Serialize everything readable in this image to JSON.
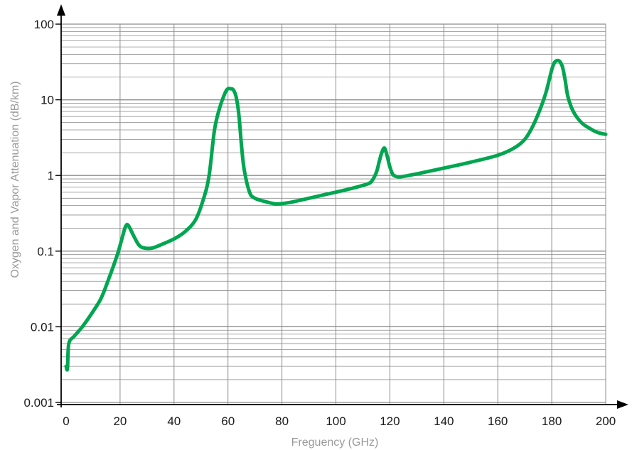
{
  "chart_data": {
    "type": "line",
    "title": "",
    "xlabel": "Freguency (GHz)",
    "ylabel": "Oxygen and Vapor Attenuation (dB/km)",
    "xlim": [
      0,
      200
    ],
    "ylim": [
      0.001,
      100
    ],
    "yscale": "log",
    "grid": true,
    "legend": "none",
    "xticks": [
      0,
      20,
      40,
      60,
      80,
      100,
      120,
      140,
      160,
      180,
      200
    ],
    "xtick_labels": [
      "0",
      "20",
      "40",
      "60",
      "80",
      "100",
      "120",
      "140",
      "160",
      "180",
      "200"
    ],
    "yticks": [
      0.001,
      0.01,
      0.1,
      1,
      10,
      100
    ],
    "ytick_labels": [
      "0.001",
      "0.01",
      "0.1",
      "1",
      "10",
      "100"
    ],
    "line_color": "#00a650",
    "grid_color": "#8c8c8c",
    "series": [
      {
        "x": [
          0,
          0.5,
          1,
          3,
          6,
          10,
          13,
          16,
          19,
          21,
          22,
          23,
          25,
          27,
          29,
          32,
          36,
          40,
          44,
          48,
          51,
          53,
          55,
          57,
          59,
          60,
          61,
          62,
          63,
          64,
          65,
          66,
          68,
          70,
          74,
          78,
          83,
          90,
          97,
          104,
          110,
          113,
          115,
          116,
          117,
          118,
          119,
          120,
          121,
          122,
          124,
          130,
          140,
          150,
          160,
          166,
          170,
          173,
          176,
          178,
          180,
          181,
          182,
          183,
          184,
          185,
          186,
          188,
          191,
          194,
          197,
          200
        ],
        "y": [
          0.003,
          0.0028,
          0.006,
          0.0075,
          0.01,
          0.016,
          0.024,
          0.045,
          0.09,
          0.16,
          0.21,
          0.22,
          0.16,
          0.12,
          0.11,
          0.11,
          0.125,
          0.145,
          0.18,
          0.26,
          0.5,
          1.0,
          4.0,
          8.0,
          12.5,
          14.0,
          14.0,
          13.5,
          11.0,
          6.5,
          2.5,
          1.2,
          0.6,
          0.5,
          0.45,
          0.42,
          0.44,
          0.5,
          0.57,
          0.65,
          0.74,
          0.82,
          1.1,
          1.5,
          2.0,
          2.3,
          1.8,
          1.3,
          1.05,
          0.98,
          0.96,
          1.05,
          1.25,
          1.5,
          1.85,
          2.3,
          3.0,
          4.5,
          8.0,
          13.0,
          25.0,
          31.0,
          33.0,
          32.0,
          27.0,
          18.0,
          11.0,
          7.0,
          5.0,
          4.2,
          3.7,
          3.5
        ]
      }
    ]
  }
}
